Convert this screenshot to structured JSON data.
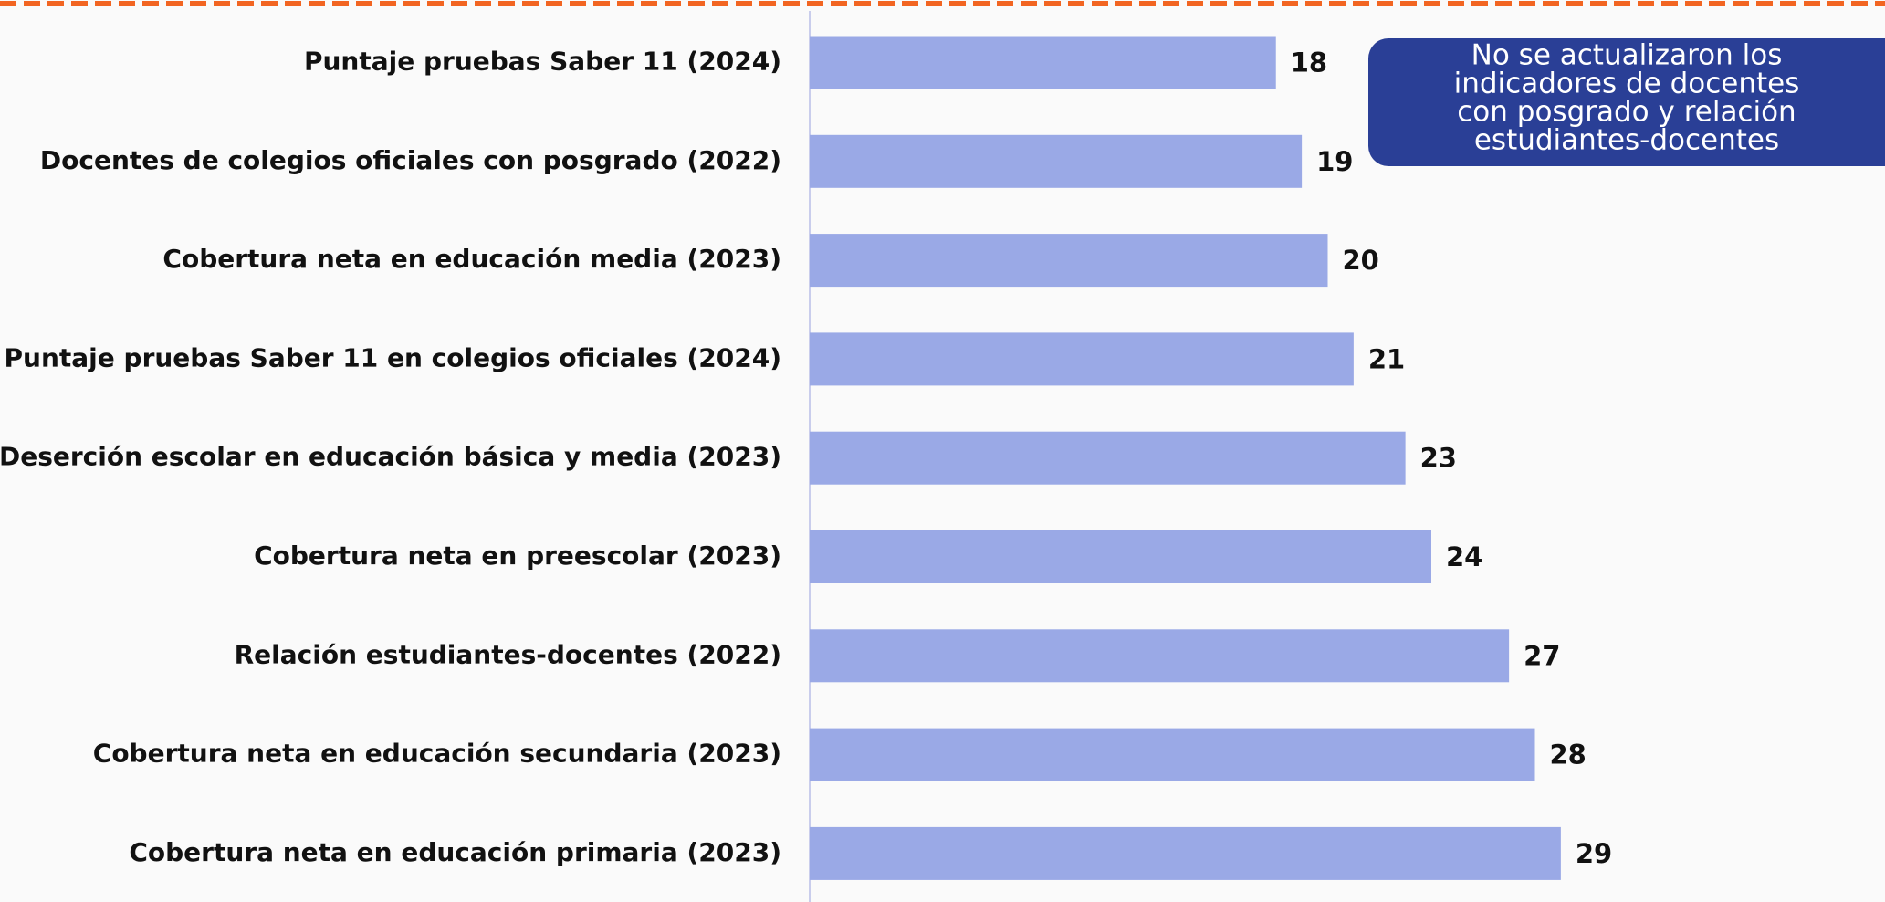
{
  "chart_data": {
    "type": "bar",
    "orientation": "horizontal",
    "categories": [
      "Puntaje pruebas Saber 11 (2024)",
      "Docentes de colegios oficiales con posgrado (2022)",
      "Cobertura neta en educación media (2023)",
      "Puntaje pruebas Saber 11 en colegios oficiales (2024)",
      "Deserción escolar en educación básica y media (2023)",
      "Cobertura neta en preescolar (2023)",
      "Relación estudiantes-docentes (2022)",
      "Cobertura neta en educación secundaria (2023)",
      "Cobertura neta en educación primaria (2023)"
    ],
    "values": [
      18,
      19,
      20,
      21,
      23,
      24,
      27,
      28,
      29
    ],
    "color": "#9aa9e6",
    "xlim": [
      0,
      40
    ],
    "annotation": [
      "No se actualizaron los",
      "indicadores de docentes",
      "con posgrado y relación",
      "estudiantes-docentes"
    ]
  }
}
